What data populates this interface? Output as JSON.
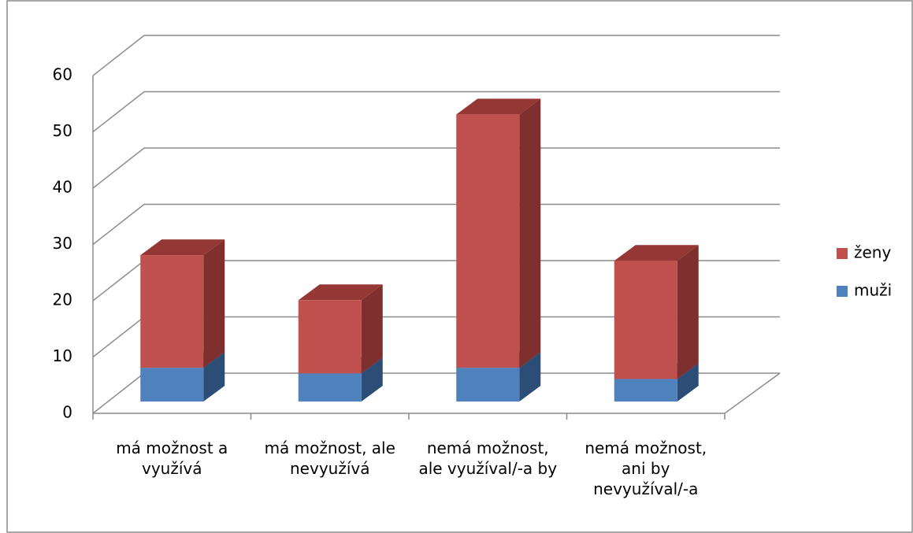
{
  "chart_data": {
    "type": "bar3d_stacked",
    "categories": [
      [
        "má možnost a",
        "využívá"
      ],
      [
        "má možnost, ale",
        "nevyužívá"
      ],
      [
        "nemá možnost,",
        "ale využíval/-a by"
      ],
      [
        "nemá možnost,",
        "ani by",
        "nevyužíval/-a"
      ]
    ],
    "series": [
      {
        "name": "muži",
        "color": "#4f81bd",
        "side": "#2c4d75",
        "top": "#385d8a",
        "values": [
          6,
          5,
          6,
          4
        ]
      },
      {
        "name": "ženy",
        "color": "#c0504d",
        "side": "#7f2f2d",
        "top": "#953735",
        "values": [
          20,
          13,
          45,
          21
        ]
      }
    ],
    "ylim": [
      0,
      60
    ],
    "yticks": [
      0,
      10,
      20,
      30,
      40,
      50,
      60
    ],
    "grid": true,
    "legend": "right"
  }
}
